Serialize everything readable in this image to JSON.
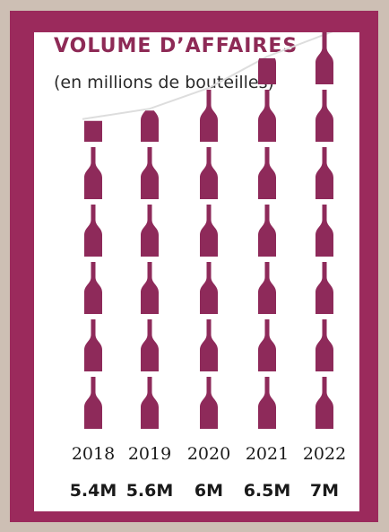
{
  "colors": {
    "background": "#cdbfb4",
    "frame": "#9b2a5c",
    "panel": "#ffffff",
    "bottle": "#8e2a5a",
    "trend_line": "#dddddd",
    "title": "#8e2a56",
    "text": "#1a1a1a"
  },
  "chart_data": {
    "type": "bar",
    "title": "VOLUME D’AFFAIRES",
    "subtitle": "(en millions de bouteilles)",
    "categories": [
      "2018",
      "2019",
      "2020",
      "2021",
      "2022"
    ],
    "values": [
      5.4,
      5.6,
      6,
      6.5,
      7
    ],
    "value_labels": [
      "5.4M",
      "5.6M",
      "6M",
      "6.5M",
      "7M"
    ],
    "unit_per_icon": 1,
    "icon": "wine-bottle-icon",
    "trend_line": true,
    "grid": false,
    "legend": "none"
  }
}
